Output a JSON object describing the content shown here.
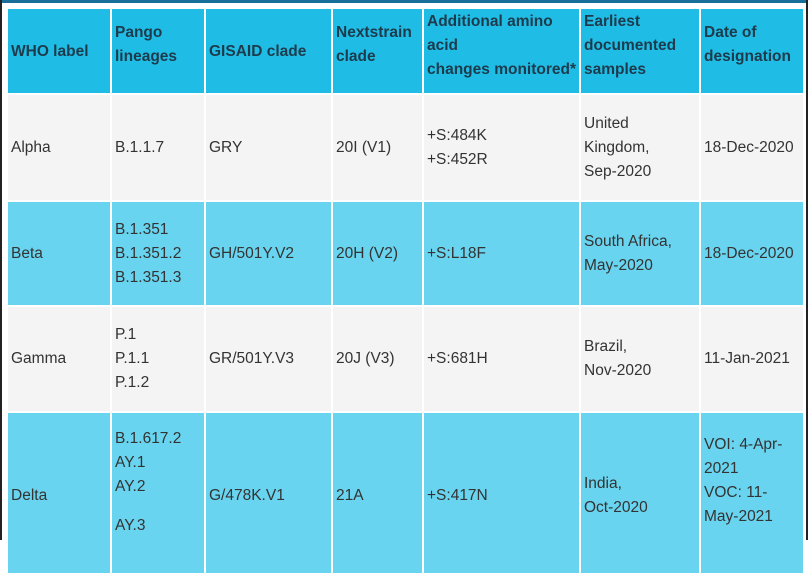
{
  "headers": [
    "WHO label",
    "Pango lineages",
    "GISAID clade",
    "Nextstrain clade",
    "Additional amino acid changes monitored*",
    "Earliest documented samples",
    "Date of designation"
  ],
  "header_lines": {
    "pango": [
      "Pango",
      "lineages"
    ],
    "nextstrain": [
      "Nextstrain",
      "clade"
    ],
    "amino": [
      "Additional amino",
      "acid",
      "changes monitored*"
    ],
    "earliest": [
      "Earliest",
      "documented",
      "samples"
    ],
    "date": [
      "Date of",
      "designation"
    ]
  },
  "rows": [
    {
      "who": "Alpha",
      "pango": [
        "B.1.1.7"
      ],
      "gisaid": "GRY",
      "nextstrain": "20I (V1)",
      "amino": [
        "+S:484K",
        "+S:452R"
      ],
      "earliest": [
        "United",
        "Kingdom,",
        "Sep-2020"
      ],
      "date": [
        "18-Dec-2020"
      ]
    },
    {
      "who": "Beta",
      "pango": [
        "B.1.351",
        "B.1.351.2",
        "B.1.351.3"
      ],
      "gisaid": "GH/501Y.V2",
      "nextstrain": "20H (V2)",
      "amino": [
        "+S:L18F"
      ],
      "earliest": [
        "South Africa,",
        "May-2020"
      ],
      "date": [
        "18-Dec-2020"
      ]
    },
    {
      "who": "Gamma",
      "pango": [
        "P.1",
        "P.1.1",
        "P.1.2"
      ],
      "gisaid": "GR/501Y.V3",
      "nextstrain": "20J (V3)",
      "amino": [
        "+S:681H"
      ],
      "earliest": [
        "Brazil,",
        "Nov-2020"
      ],
      "date": [
        "11-Jan-2021"
      ]
    },
    {
      "who": "Delta",
      "pango": [
        "B.1.617.2",
        "AY.1",
        "AY.2",
        "AY.3"
      ],
      "gisaid": "G/478K.V1",
      "nextstrain": "21A",
      "amino": [
        "+S:417N"
      ],
      "earliest": [
        "India,",
        "Oct-2020"
      ],
      "date": [
        "VOI: 4-Apr-",
        "2021",
        "VOC: 11-",
        "May-2021"
      ]
    }
  ],
  "colors": {
    "header": "#1fbde5",
    "row_blue": "#69d4ef",
    "row_gray": "#f4f4f4"
  }
}
